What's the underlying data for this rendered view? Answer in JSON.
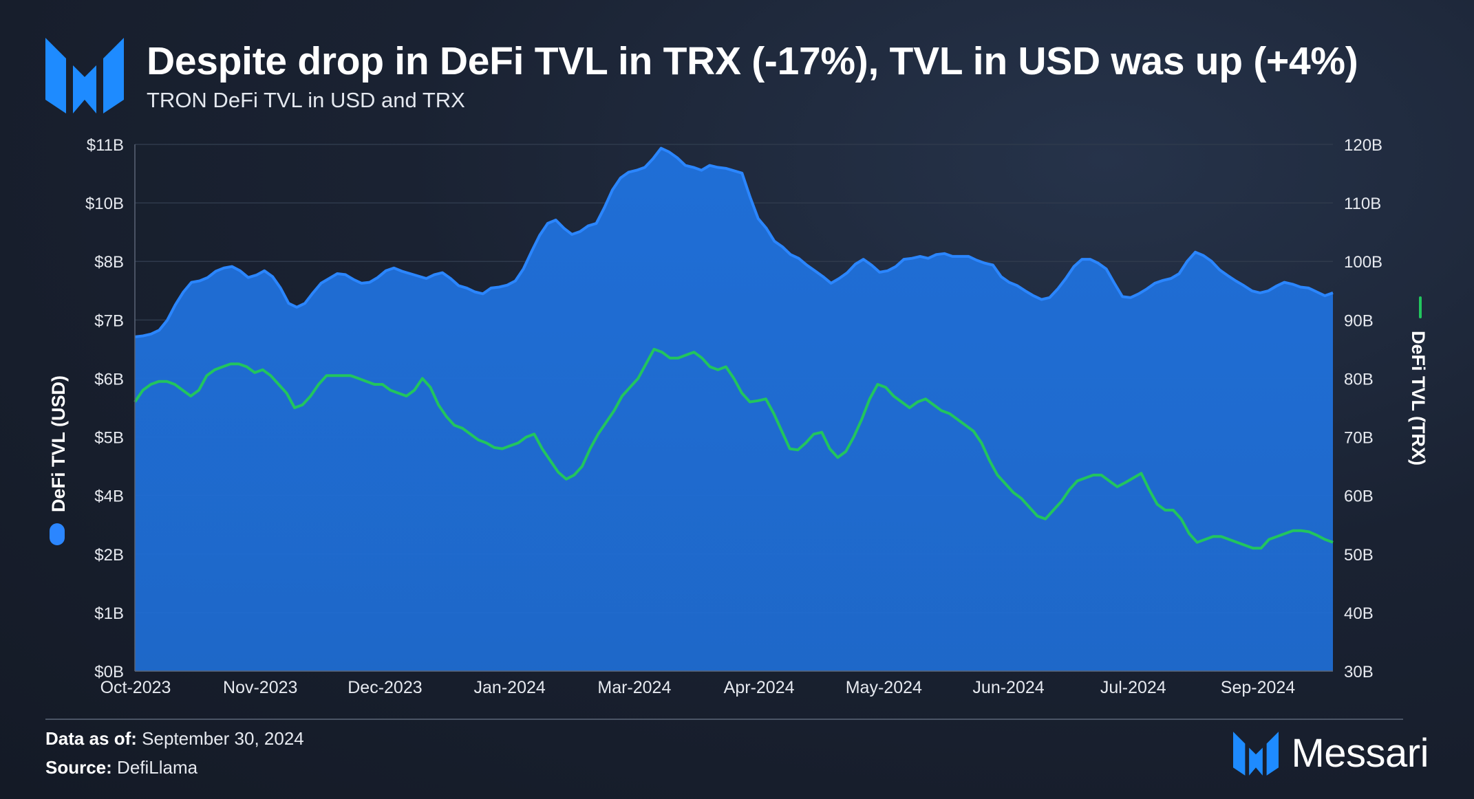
{
  "header": {
    "title": "Despite drop in DeFi TVL in TRX (-17%), TVL in USD was up (+4%)",
    "subtitle": "TRON DeFi TVL in USD and TRX"
  },
  "footer": {
    "as_of_label": "Data as of:",
    "as_of_value": "September 30, 2024",
    "source_label": "Source:",
    "source_value": "DefiLlama",
    "brand": "Messari"
  },
  "colors": {
    "usd": "#1f6ed6",
    "usd_line": "#2b86ff",
    "trx": "#22c55e",
    "grid": "#2f3a4c",
    "axis_text": "#e6e9ef"
  },
  "chart_data": {
    "type": "area",
    "title": "TRON DeFi TVL in USD and TRX",
    "x_ticks": [
      "Oct-2023",
      "Nov-2023",
      "Dec-2023",
      "Jan-2024",
      "Mar-2024",
      "Apr-2024",
      "May-2024",
      "Jun-2024",
      "Jul-2024",
      "Sep-2024"
    ],
    "y_left": {
      "label": "DeFi TVL (USD)",
      "ticks": [
        "$0B",
        "$1B",
        "$2B",
        "$4B",
        "$5B",
        "$6B",
        "$7B",
        "$8B",
        "$10B",
        "$11B"
      ],
      "range": [
        0,
        11
      ]
    },
    "y_right": {
      "label": "DeFi TVL (TRX)",
      "ticks": [
        "30B",
        "40B",
        "50B",
        "60B",
        "70B",
        "80B",
        "90B",
        "100B",
        "110B",
        "120B"
      ],
      "range": [
        30,
        120
      ]
    },
    "grid": true,
    "series": [
      {
        "name": "DeFi TVL (USD)",
        "axis": "left",
        "kind": "area",
        "values": [
          6.98,
          7.0,
          7.04,
          7.12,
          7.33,
          7.65,
          7.92,
          8.12,
          8.15,
          8.22,
          8.35,
          8.42,
          8.45,
          8.36,
          8.22,
          8.27,
          8.36,
          8.24,
          8.0,
          7.68,
          7.6,
          7.68,
          7.9,
          8.1,
          8.2,
          8.3,
          8.28,
          8.18,
          8.1,
          8.12,
          8.22,
          8.36,
          8.42,
          8.35,
          8.3,
          8.25,
          8.2,
          8.28,
          8.32,
          8.2,
          8.05,
          8.0,
          7.92,
          7.88,
          8.0,
          8.02,
          8.06,
          8.15,
          8.4,
          8.76,
          9.1,
          9.35,
          9.42,
          9.25,
          9.12,
          9.18,
          9.3,
          9.35,
          9.68,
          10.05,
          10.3,
          10.42,
          10.46,
          10.52,
          10.7,
          10.92,
          10.84,
          10.72,
          10.56,
          10.52,
          10.46,
          10.56,
          10.52,
          10.5,
          10.45,
          10.4,
          9.9,
          9.45,
          9.25,
          8.98,
          8.86,
          8.7,
          8.62,
          8.48,
          8.36,
          8.24,
          8.1,
          8.2,
          8.32,
          8.5,
          8.6,
          8.48,
          8.33,
          8.36,
          8.45,
          8.6,
          8.62,
          8.66,
          8.62,
          8.7,
          8.72,
          8.66,
          8.66,
          8.66,
          8.58,
          8.52,
          8.48,
          8.24,
          8.12,
          8.05,
          7.94,
          7.84,
          7.76,
          7.8,
          7.98,
          8.2,
          8.45,
          8.6,
          8.6,
          8.52,
          8.4,
          8.1,
          7.82,
          7.8,
          7.88,
          7.98,
          8.1,
          8.16,
          8.2,
          8.3,
          8.56,
          8.75,
          8.68,
          8.56,
          8.38,
          8.26,
          8.15,
          8.05,
          7.94,
          7.9,
          7.94,
          8.04,
          8.12,
          8.08,
          8.02,
          8.0,
          7.92,
          7.84,
          7.9
        ]
      },
      {
        "name": "DeFi TVL (TRX)",
        "axis": "right",
        "kind": "line",
        "values": [
          76,
          78,
          79,
          79.5,
          79.5,
          79,
          78,
          77,
          78,
          80.5,
          81.5,
          82,
          82.5,
          82.5,
          82,
          81,
          81.5,
          80.5,
          79,
          77.5,
          75,
          75.5,
          77,
          79,
          80.5,
          80.5,
          80.5,
          80.5,
          80,
          79.5,
          79,
          79,
          78,
          77.5,
          77,
          78,
          80,
          78.5,
          75.5,
          73.5,
          72,
          71.5,
          70.5,
          69.5,
          69,
          68.2,
          68,
          68.5,
          69,
          70,
          70.5,
          68,
          66,
          64,
          62.8,
          63.5,
          65,
          68,
          70.5,
          72.5,
          74.5,
          77,
          78.5,
          80,
          82.5,
          85,
          84.5,
          83.5,
          83.5,
          84,
          84.5,
          83.5,
          82,
          81.5,
          82,
          80,
          77.5,
          76,
          76.2,
          76.5,
          74,
          71,
          68,
          67.8,
          69,
          70.5,
          70.8,
          68,
          66.5,
          67.5,
          70,
          73,
          76.5,
          79,
          78.5,
          77,
          76,
          75,
          76,
          76.5,
          75.5,
          74.5,
          74,
          73,
          72,
          71,
          69,
          66,
          63.5,
          62,
          60.5,
          59.5,
          58,
          56.5,
          56,
          57.5,
          59,
          61,
          62.5,
          63,
          63.5,
          63.5,
          62.5,
          61.5,
          62.2,
          63,
          63.8,
          61,
          58.5,
          57.5,
          57.5,
          56,
          53.5,
          52,
          52.5,
          53,
          53,
          52.5,
          52,
          51.5,
          51,
          51,
          52.5,
          53,
          53.5,
          54,
          54,
          53.8,
          53.2,
          52.5,
          52
        ]
      }
    ]
  }
}
